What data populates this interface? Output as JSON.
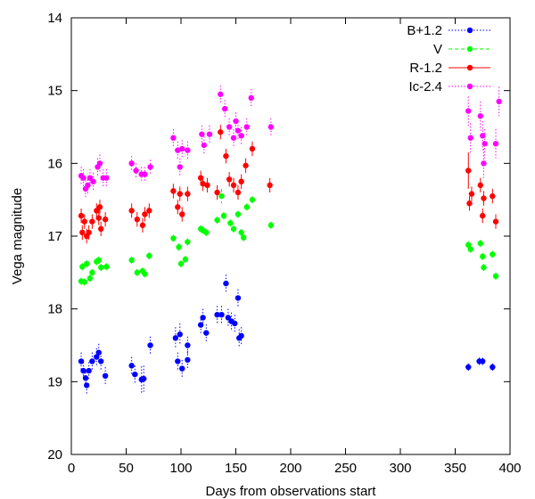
{
  "chart_data": {
    "type": "scatter",
    "xlabel": "Days from observations start",
    "ylabel": "Vega magnitude",
    "xlim": [
      0,
      400
    ],
    "ylim": [
      14,
      20
    ],
    "y_inverted": true,
    "x_ticks": [
      0,
      50,
      100,
      150,
      200,
      250,
      300,
      350,
      400
    ],
    "y_ticks": [
      14,
      15,
      16,
      17,
      18,
      19,
      20
    ],
    "grid": false,
    "legend_position": "top-right",
    "series": [
      {
        "name": "B+1.2",
        "color": "#0000ff",
        "line_style": "dotted",
        "points": [
          [
            9,
            18.72,
            0.12
          ],
          [
            11,
            18.85,
            0.12
          ],
          [
            13,
            18.95,
            0.12
          ],
          [
            14,
            19.05,
            0.12
          ],
          [
            16,
            18.85,
            0.12
          ],
          [
            19,
            18.72,
            0.12
          ],
          [
            23,
            18.66,
            0.12
          ],
          [
            25,
            18.6,
            0.12
          ],
          [
            27,
            18.72,
            0.12
          ],
          [
            31,
            18.92,
            0.12
          ],
          [
            55,
            18.78,
            0.12
          ],
          [
            58,
            18.9,
            0.12
          ],
          [
            64,
            18.97,
            0.18
          ],
          [
            66,
            18.96,
            0.18
          ],
          [
            72,
            18.5,
            0.12
          ],
          [
            95,
            18.4,
            0.15
          ],
          [
            97,
            18.72,
            0.12
          ],
          [
            99,
            18.35,
            0.15
          ],
          [
            101,
            18.82,
            0.12
          ],
          [
            106,
            18.5,
            0.12
          ],
          [
            106,
            18.7,
            0.12
          ],
          [
            118,
            18.22,
            0.12
          ],
          [
            120,
            18.12,
            0.12
          ],
          [
            123,
            18.33,
            0.12
          ],
          [
            133,
            18.08,
            0.12
          ],
          [
            137,
            18.08,
            0.12
          ],
          [
            141,
            17.65,
            0.12
          ],
          [
            143,
            18.12,
            0.12
          ],
          [
            146,
            18.17,
            0.12
          ],
          [
            149,
            18.2,
            0.12
          ],
          [
            152,
            17.85,
            0.12
          ],
          [
            153,
            18.4,
            0.12
          ],
          [
            155,
            18.37,
            0.12
          ],
          [
            362,
            18.8,
            0.05
          ],
          [
            372,
            18.72,
            0.05
          ],
          [
            375,
            18.72,
            0.05
          ],
          [
            384,
            18.8,
            0.05
          ]
        ]
      },
      {
        "name": "V",
        "color": "#00ff00",
        "line_style": "dashed",
        "points": [
          [
            9,
            17.62,
            0.05
          ],
          [
            10,
            17.42,
            0.05
          ],
          [
            12,
            17.63,
            0.05
          ],
          [
            14,
            17.38,
            0.05
          ],
          [
            17,
            17.58,
            0.05
          ],
          [
            19,
            17.5,
            0.05
          ],
          [
            23,
            17.35,
            0.05
          ],
          [
            25,
            17.33,
            0.05
          ],
          [
            27,
            17.43,
            0.05
          ],
          [
            32,
            17.42,
            0.05
          ],
          [
            55,
            17.33,
            0.05
          ],
          [
            60,
            17.5,
            0.05
          ],
          [
            65,
            17.48,
            0.05
          ],
          [
            67,
            17.52,
            0.05
          ],
          [
            71,
            17.27,
            0.05
          ],
          [
            93,
            17.03,
            0.05
          ],
          [
            98,
            17.15,
            0.05
          ],
          [
            100,
            17.38,
            0.05
          ],
          [
            104,
            17.32,
            0.05
          ],
          [
            106,
            17.08,
            0.05
          ],
          [
            118,
            16.9,
            0.05
          ],
          [
            120,
            16.92,
            0.05
          ],
          [
            123,
            16.95,
            0.05
          ],
          [
            133,
            16.78,
            0.05
          ],
          [
            137,
            16.45,
            0.1
          ],
          [
            139,
            16.72,
            0.05
          ],
          [
            145,
            16.82,
            0.05
          ],
          [
            148,
            16.9,
            0.05
          ],
          [
            152,
            16.7,
            0.05
          ],
          [
            155,
            16.95,
            0.05
          ],
          [
            157,
            17.02,
            0.05
          ],
          [
            160,
            16.6,
            0.05
          ],
          [
            165,
            16.5,
            0.05
          ],
          [
            182,
            16.85,
            0.05
          ],
          [
            362,
            17.12,
            0.05
          ],
          [
            364,
            17.18,
            0.05
          ],
          [
            373,
            17.1,
            0.05
          ],
          [
            375,
            17.28,
            0.05
          ],
          [
            376,
            17.43,
            0.05
          ],
          [
            384,
            17.25,
            0.05
          ],
          [
            387,
            17.55,
            0.05
          ]
        ]
      },
      {
        "name": "R-1.2",
        "color": "#ff0000",
        "line_style": "solid",
        "points": [
          [
            9,
            16.72,
            0.1
          ],
          [
            10,
            16.95,
            0.1
          ],
          [
            12,
            16.8,
            0.1
          ],
          [
            14,
            17.0,
            0.1
          ],
          [
            16,
            16.95,
            0.1
          ],
          [
            19,
            16.8,
            0.1
          ],
          [
            23,
            16.65,
            0.1
          ],
          [
            25,
            16.75,
            0.1
          ],
          [
            26,
            16.6,
            0.1
          ],
          [
            27,
            16.9,
            0.1
          ],
          [
            31,
            16.77,
            0.1
          ],
          [
            55,
            16.65,
            0.1
          ],
          [
            60,
            16.77,
            0.1
          ],
          [
            65,
            16.85,
            0.1
          ],
          [
            67,
            16.7,
            0.1
          ],
          [
            71,
            16.65,
            0.1
          ],
          [
            93,
            16.38,
            0.1
          ],
          [
            97,
            16.6,
            0.1
          ],
          [
            99,
            16.42,
            0.1
          ],
          [
            101,
            16.7,
            0.1
          ],
          [
            106,
            16.42,
            0.1
          ],
          [
            118,
            16.2,
            0.1
          ],
          [
            120,
            16.28,
            0.1
          ],
          [
            124,
            16.3,
            0.1
          ],
          [
            133,
            16.4,
            0.1
          ],
          [
            136,
            15.57,
            0.1
          ],
          [
            141,
            15.9,
            0.1
          ],
          [
            144,
            16.22,
            0.1
          ],
          [
            148,
            16.3,
            0.1
          ],
          [
            152,
            16.4,
            0.1
          ],
          [
            155,
            16.25,
            0.1
          ],
          [
            159,
            16.03,
            0.1
          ],
          [
            165,
            15.8,
            0.1
          ],
          [
            181,
            16.3,
            0.1
          ],
          [
            362,
            16.1,
            0.25
          ],
          [
            363,
            16.55,
            0.1
          ],
          [
            365,
            16.42,
            0.1
          ],
          [
            373,
            16.3,
            0.1
          ],
          [
            375,
            16.72,
            0.1
          ],
          [
            376,
            16.48,
            0.1
          ],
          [
            384,
            16.45,
            0.1
          ],
          [
            387,
            16.8,
            0.1
          ]
        ]
      },
      {
        "name": "Ic-2.4",
        "color": "#ff00ff",
        "line_style": "dotted",
        "points": [
          [
            9,
            16.17,
            0.12
          ],
          [
            11,
            16.2,
            0.12
          ],
          [
            13,
            16.35,
            0.12
          ],
          [
            15,
            16.3,
            0.12
          ],
          [
            17,
            16.2,
            0.12
          ],
          [
            20,
            16.25,
            0.12
          ],
          [
            24,
            16.05,
            0.12
          ],
          [
            26,
            16.0,
            0.12
          ],
          [
            29,
            16.2,
            0.12
          ],
          [
            32,
            16.2,
            0.12
          ],
          [
            55,
            16.0,
            0.1
          ],
          [
            59,
            16.1,
            0.1
          ],
          [
            64,
            16.15,
            0.1
          ],
          [
            67,
            16.15,
            0.1
          ],
          [
            72,
            16.05,
            0.1
          ],
          [
            93,
            15.65,
            0.12
          ],
          [
            97,
            15.82,
            0.12
          ],
          [
            99,
            16.05,
            0.12
          ],
          [
            101,
            15.8,
            0.12
          ],
          [
            106,
            15.82,
            0.12
          ],
          [
            119,
            15.6,
            0.12
          ],
          [
            121,
            15.75,
            0.12
          ],
          [
            126,
            15.6,
            0.12
          ],
          [
            136,
            15.05,
            0.12
          ],
          [
            140,
            15.25,
            0.12
          ],
          [
            144,
            15.5,
            0.12
          ],
          [
            148,
            15.65,
            0.12
          ],
          [
            150,
            15.42,
            0.12
          ],
          [
            152,
            15.55,
            0.12
          ],
          [
            155,
            15.62,
            0.12
          ],
          [
            160,
            15.5,
            0.12
          ],
          [
            164,
            15.1,
            0.12
          ],
          [
            182,
            15.5,
            0.12
          ],
          [
            362,
            15.28,
            0.2
          ],
          [
            364,
            15.65,
            0.2
          ],
          [
            373,
            15.35,
            0.2
          ],
          [
            375,
            15.62,
            0.2
          ],
          [
            376,
            16.0,
            0.2
          ],
          [
            377,
            15.73,
            0.2
          ],
          [
            387,
            15.73,
            0.2
          ],
          [
            390,
            15.15,
            0.2
          ]
        ]
      }
    ]
  }
}
